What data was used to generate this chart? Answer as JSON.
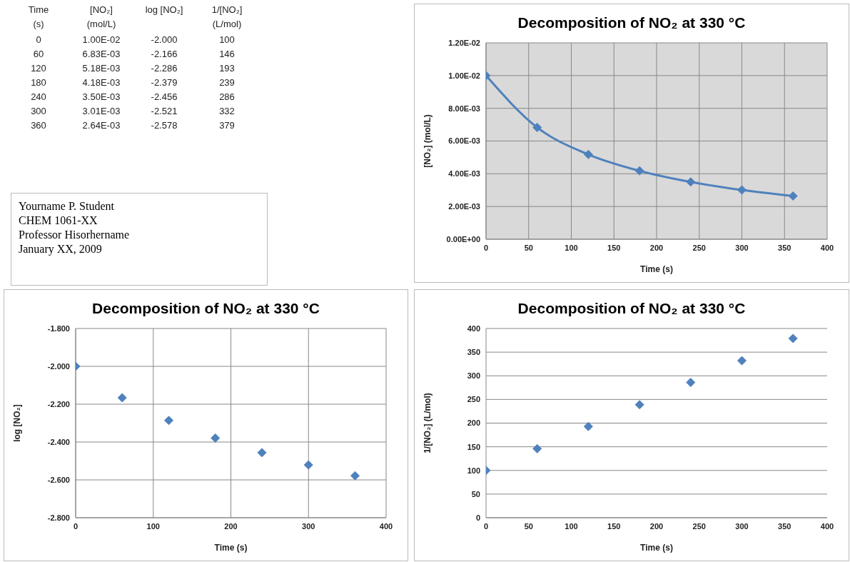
{
  "chart_data": [
    {
      "type": "other",
      "annotations": [
        "Time\n(s)",
        "[NO₂]\n(mol/L)",
        "log [NO₂]",
        "1/[NO₂]\n(L/mol)",
        "0",
        "1.00E-02",
        "-2.000",
        "100",
        "60",
        "6.83E-03",
        "-2.166",
        "146",
        "120",
        "5.18E-03",
        "-2.286",
        "193",
        "180",
        "4.18E-03",
        "-2.379",
        "239",
        "240",
        "3.50E-03",
        "-2.456",
        "286",
        "300",
        "3.01E-03",
        "-2.521",
        "332",
        "360",
        "2.64E-03",
        "-2.578",
        "379"
      ]
    },
    {
      "type": "line",
      "title": "Decomposition of NO₂ at 330 °C",
      "xlabel": "Time (s)",
      "ylabel": "[NO₂] (mol/L)",
      "x": [
        0,
        60,
        120,
        180,
        240,
        300,
        360
      ],
      "series": [
        {
          "color": "#4f81bd",
          "values": [
            0.01,
            0.00683,
            0.00518,
            0.00418,
            0.0035,
            0.00301,
            0.00264
          ]
        }
      ],
      "xlim": [
        0,
        400
      ],
      "xticks": [
        0,
        50,
        100,
        150,
        200,
        250,
        300,
        350,
        400
      ],
      "ylim": [
        0,
        0.012
      ],
      "yticks": [
        {
          "value": 0,
          "label": "0.00E+00"
        },
        {
          "value": 0.002,
          "label": "2.00E-03"
        },
        {
          "value": 0.004,
          "label": "4.00E-03"
        },
        {
          "value": 0.006,
          "label": "6.00E-03"
        },
        {
          "value": 0.008,
          "label": "8.00E-03"
        },
        {
          "value": 0.01,
          "label": "1.00E-02"
        },
        {
          "value": 0.012,
          "label": "1.20E-02"
        }
      ],
      "grid": true,
      "marker": "diamond",
      "line_style": "solid"
    },
    {
      "type": "other",
      "annotations": [
        "Yourname P. Student",
        "CHEM 1061-XX",
        "Professor Hisorhername",
        "January XX, 2009"
      ]
    },
    {
      "type": "scatter",
      "title": "Decomposition of NO₂ at 330 °C",
      "xlabel": "Time (s)",
      "ylabel": "log [NO₂]",
      "x": [
        0,
        60,
        120,
        180,
        240,
        300,
        360
      ],
      "series": [
        {
          "color": "#4f81bd",
          "values": [
            -2,
            -2.166,
            -2.286,
            -2.379,
            -2.456,
            -2.521,
            -2.578
          ]
        }
      ],
      "xlim": [
        0,
        400
      ],
      "xticks": [
        0,
        100,
        200,
        300,
        400
      ],
      "ylim": [
        -2.8,
        -1.8
      ],
      "yticks": [
        {
          "value": -2.8,
          "label": "-2.800"
        },
        {
          "value": -2.6,
          "label": "-2.600"
        },
        {
          "value": -2.4,
          "label": "-2.400"
        },
        {
          "value": -2.2,
          "label": "-2.200"
        },
        {
          "value": -2,
          "label": "-2.000"
        },
        {
          "value": -1.8,
          "label": "-1.800"
        }
      ],
      "grid": true,
      "marker": "diamond"
    },
    {
      "type": "scatter",
      "title": "Decomposition of NO₂ at 330 °C",
      "xlabel": "Time (s)",
      "ylabel": "1/[NO₂] (L/mol)",
      "x": [
        0,
        60,
        120,
        180,
        240,
        300,
        360
      ],
      "series": [
        {
          "color": "#4f81bd",
          "values": [
            100,
            146,
            193,
            239,
            286,
            332,
            379
          ]
        }
      ],
      "xlim": [
        0,
        400
      ],
      "xticks": [
        0,
        50,
        100,
        150,
        200,
        250,
        300,
        350,
        400
      ],
      "ylim": [
        0,
        400
      ],
      "yticks": [
        0,
        50,
        100,
        150,
        200,
        250,
        300,
        350,
        400
      ],
      "grid": "y",
      "marker": "diamond"
    }
  ]
}
